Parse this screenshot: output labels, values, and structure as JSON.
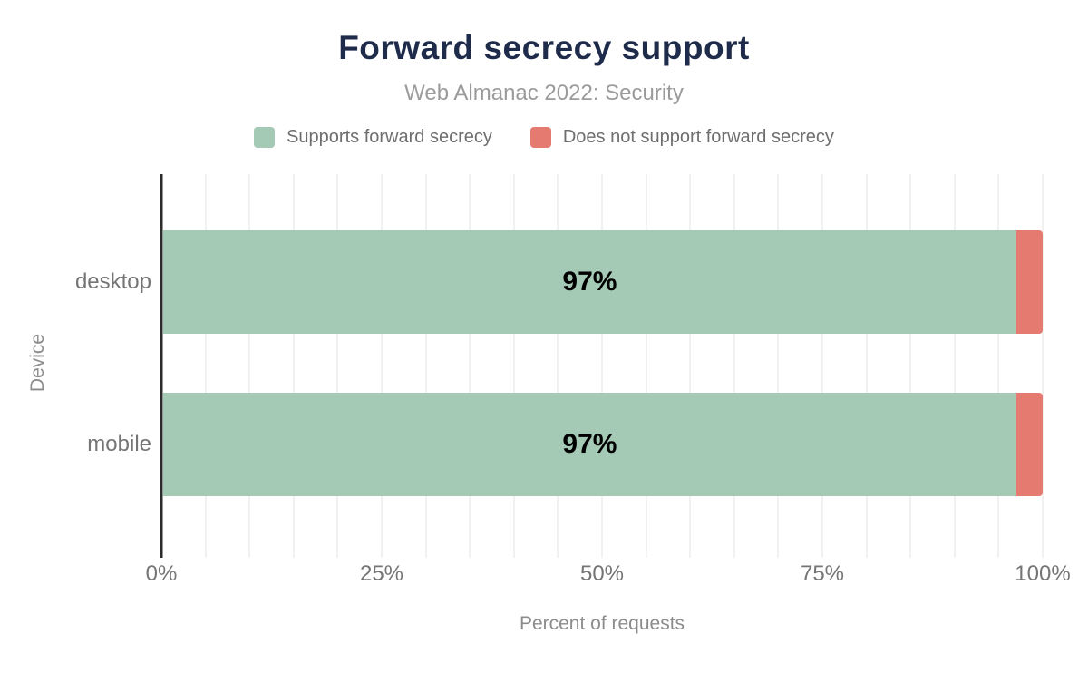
{
  "figure": {
    "title": "Forward secrecy support",
    "subtitle": "Web Almanac 2022: Security"
  },
  "chart_data": {
    "type": "bar",
    "orientation": "horizontal",
    "stacked": true,
    "title": "Forward secrecy support",
    "subtitle": "Web Almanac 2022: Security",
    "categories": [
      "desktop",
      "mobile"
    ],
    "series": [
      {
        "name": "Supports forward secrecy",
        "color": "#a4c9b4",
        "values": [
          97,
          97
        ],
        "value_labels": [
          "97%",
          "97%"
        ]
      },
      {
        "name": "Does not support forward secrecy",
        "color": "#e47a70",
        "values": [
          3,
          3
        ],
        "value_labels": [
          "",
          ""
        ]
      }
    ],
    "xlabel": "Percent of requests",
    "ylabel": "Device",
    "xlim": [
      0,
      100
    ],
    "x_ticks": [
      {
        "value": 0,
        "label": "0%"
      },
      {
        "value": 25,
        "label": "25%"
      },
      {
        "value": 50,
        "label": "50%"
      },
      {
        "value": 75,
        "label": "75%"
      },
      {
        "value": 100,
        "label": "100%"
      }
    ],
    "grid": {
      "minor_step_percent": 5,
      "color": "#f1f1f1",
      "axis_line_color": "#2b2b2b"
    },
    "legend_position": "top",
    "colors": {
      "title": "#1f2b4a",
      "subtitle": "#9b9b9b",
      "legend_text": "#6e6e6e",
      "tick_text": "#757575",
      "axis_title_text": "#8c8c8c",
      "bar_value_text": "#000000"
    }
  }
}
